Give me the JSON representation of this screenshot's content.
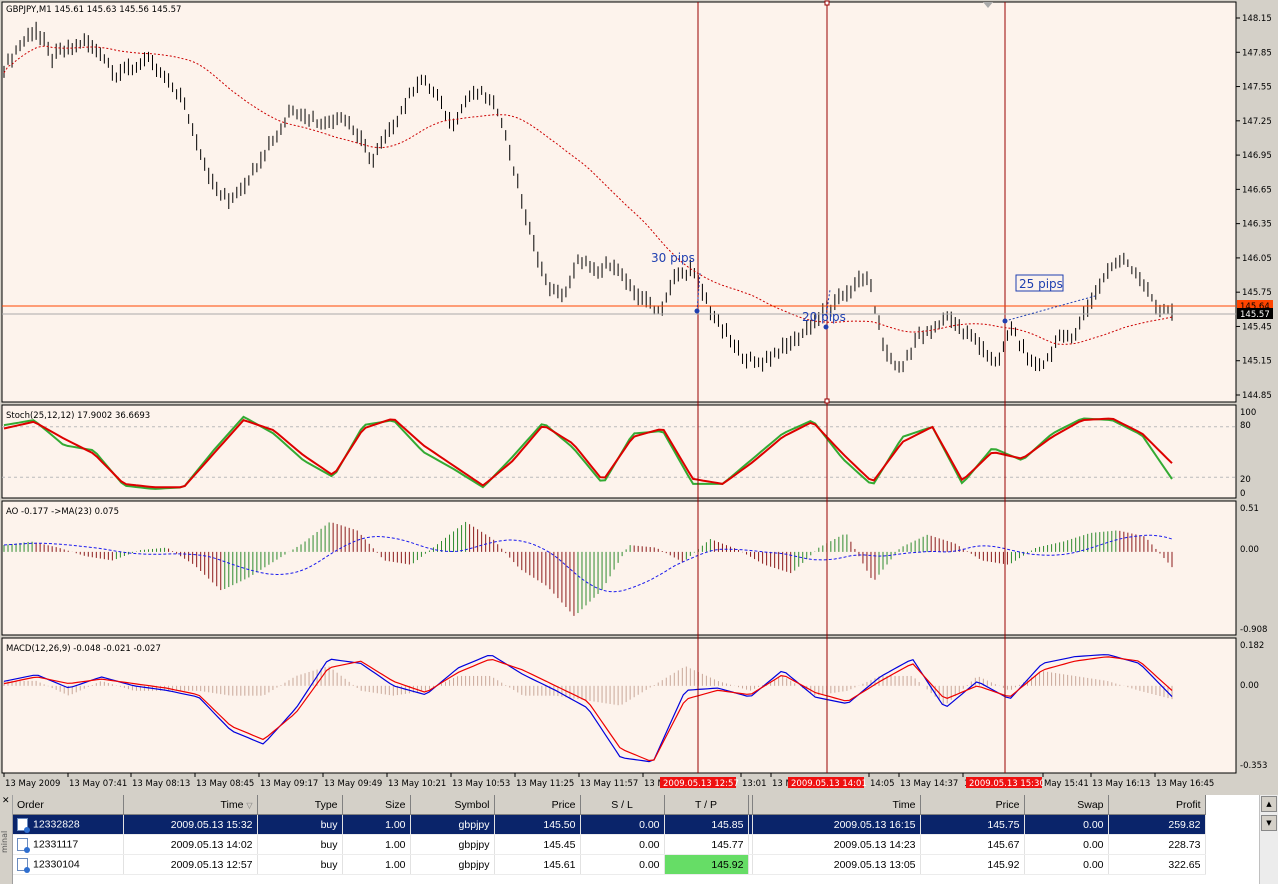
{
  "colors": {
    "chart_bg": "#fdf3ec",
    "bars": "#000000",
    "ma": "#cc0000",
    "stoch_main": "#33aa33",
    "stoch_signal": "#dd0000",
    "ao_up": "#2e8b2e",
    "ao_down": "#8b1a1a",
    "macd_main": "#0000dd",
    "macd_signal": "#ee0000",
    "macd_hist": "#c9a89a",
    "vline": "#990000",
    "annot": "#1f3fb0",
    "bid_line": "#ff4500",
    "sel_row": "#0a246a",
    "tp_hit": "#66dd66"
  },
  "main": {
    "header": "GBPJPY,M1  145.61 145.63 145.56 145.57",
    "price_ticks": [
      "148.15",
      "147.85",
      "147.55",
      "147.25",
      "146.95",
      "146.65",
      "146.35",
      "146.05",
      "145.75",
      "145.45",
      "145.15",
      "144.85"
    ],
    "bid_tag": "145.64",
    "last_tag": "145.57",
    "annotations": [
      "30 pips",
      "20 pips",
      "25 pips"
    ]
  },
  "stoch": {
    "header": "Stoch(25,12,12) 17.9002 36.6693",
    "ticks": [
      "100",
      "80",
      "20",
      "0"
    ]
  },
  "ao": {
    "header": "AO -0.177  ->MA(23) 0.075",
    "ticks": [
      "0.51",
      "0.00",
      "-0.908"
    ]
  },
  "macd": {
    "header": "MACD(12,26,9) -0.048 -0.021 -0.027",
    "ticks": [
      "0.182",
      "0.00",
      "-0.353"
    ]
  },
  "time_axis": {
    "labels": [
      "13 May 2009",
      "13 May 07:41",
      "13 May 08:13",
      "13 May 08:45",
      "13 May 09:17",
      "13 May 09:49",
      "13 May 10:21",
      "13 May 10:53",
      "13 May 11:25",
      "13 May 11:57",
      "13 M",
      "13:01",
      "13 M",
      "14:05",
      "13 May 14:37",
      "13 May 15:09",
      "May 15:41",
      "13 May 16:13",
      "13 May 16:45"
    ],
    "markers": [
      "2009.05.13 12:57",
      "2009.05.13 14:01",
      "2009.05.13 15:30"
    ]
  },
  "terminal": {
    "side_label": "minal",
    "columns": [
      "Order",
      "Time",
      "Type",
      "Size",
      "Symbol",
      "Price",
      "S / L",
      "T / P",
      "",
      "Time",
      "Price",
      "Swap",
      "Profit"
    ],
    "rows": [
      [
        "12332828",
        "2009.05.13 15:32",
        "buy",
        "1.00",
        "gbpjpy",
        "145.50",
        "0.00",
        "145.85",
        "2009.05.13 16:15",
        "145.75",
        "0.00",
        "259.82"
      ],
      [
        "12331117",
        "2009.05.13 14:02",
        "buy",
        "1.00",
        "gbpjpy",
        "145.45",
        "0.00",
        "145.77",
        "2009.05.13 14:23",
        "145.67",
        "0.00",
        "228.73"
      ],
      [
        "12330104",
        "2009.05.13 12:57",
        "buy",
        "1.00",
        "gbpjpy",
        "145.61",
        "0.00",
        "145.92",
        "2009.05.13 13:05",
        "145.92",
        "0.00",
        "322.65"
      ]
    ]
  },
  "chart_data": {
    "type": "line",
    "symbol": "GBPJPY,M1",
    "last_ohlc": [
      145.61,
      145.63,
      145.56,
      145.57
    ],
    "price_ylim": [
      144.85,
      148.15
    ],
    "price_path": [
      147.7,
      147.92,
      148.05,
      147.8,
      147.88,
      147.95,
      147.85,
      147.66,
      147.72,
      147.78,
      147.64,
      147.48,
      147.1,
      146.7,
      146.55,
      146.68,
      146.92,
      147.12,
      147.36,
      147.28,
      147.22,
      147.32,
      147.14,
      146.9,
      147.12,
      147.38,
      147.62,
      147.48,
      147.2,
      147.46,
      147.5,
      147.32,
      146.75,
      146.2,
      145.8,
      145.72,
      146.05,
      145.9,
      146.02,
      145.8,
      145.68,
      145.58,
      145.9,
      145.95,
      145.64,
      145.4,
      145.22,
      145.12,
      145.2,
      145.28,
      145.4,
      145.55,
      145.65,
      145.8,
      145.9,
      145.25,
      145.05,
      145.35,
      145.4,
      145.55,
      145.4,
      145.3,
      145.1,
      145.45,
      145.15,
      145.12,
      145.35,
      145.4,
      145.7,
      145.95,
      146.05,
      145.88,
      145.64,
      145.57
    ],
    "stoch_ylim": [
      0,
      100
    ],
    "stoch_main": [
      82,
      88,
      58,
      52,
      10,
      6,
      8,
      52,
      92,
      72,
      40,
      20,
      82,
      88,
      50,
      30,
      8,
      45,
      85,
      55,
      12,
      72,
      75,
      12,
      12,
      42,
      72,
      88,
      42,
      10,
      68,
      80,
      12,
      55,
      40,
      72,
      90,
      88,
      70,
      17.9
    ],
    "stoch_signal": [
      78,
      86,
      66,
      48,
      12,
      8,
      8,
      48,
      88,
      76,
      46,
      22,
      78,
      90,
      58,
      34,
      10,
      40,
      82,
      60,
      16,
      68,
      78,
      18,
      12,
      38,
      68,
      86,
      48,
      14,
      62,
      80,
      16,
      50,
      42,
      68,
      88,
      90,
      72,
      36.67
    ],
    "ao_ylim": [
      -0.908,
      0.51
    ],
    "ao_values": [
      0.08,
      0.12,
      0.05,
      -0.05,
      -0.1,
      0.02,
      0.05,
      -0.15,
      -0.45,
      -0.3,
      -0.1,
      0.1,
      0.35,
      0.25,
      -0.1,
      -0.15,
      0.1,
      0.35,
      0.15,
      -0.2,
      -0.4,
      -0.75,
      -0.45,
      0.08,
      0.05,
      -0.12,
      0.15,
      0.03,
      -0.15,
      -0.25,
      0.05,
      0.22,
      -0.35,
      0.05,
      0.2,
      0.1,
      -0.1,
      -0.15,
      0.05,
      0.12,
      0.22,
      0.25,
      0.18,
      -0.177
    ],
    "macd_ylim": [
      -0.353,
      0.182
    ],
    "macd_main": [
      0.02,
      0.05,
      -0.01,
      0.04,
      0.0,
      -0.02,
      -0.05,
      -0.2,
      -0.26,
      -0.1,
      0.12,
      0.1,
      0.0,
      -0.04,
      0.08,
      0.14,
      0.05,
      -0.02,
      -0.1,
      -0.32,
      -0.34,
      -0.02,
      -0.01,
      -0.05,
      0.07,
      -0.05,
      -0.08,
      0.04,
      0.12,
      -0.1,
      0.02,
      -0.06,
      0.1,
      0.13,
      0.14,
      0.1,
      -0.048
    ],
    "macd_signal": [
      0.01,
      0.04,
      0.01,
      0.03,
      0.01,
      -0.01,
      -0.04,
      -0.18,
      -0.24,
      -0.12,
      0.08,
      0.11,
      0.02,
      -0.03,
      0.06,
      0.12,
      0.07,
      0.0,
      -0.07,
      -0.28,
      -0.34,
      -0.06,
      -0.02,
      -0.04,
      0.05,
      -0.03,
      -0.07,
      0.02,
      0.1,
      -0.06,
      0.0,
      -0.05,
      0.07,
      0.11,
      0.13,
      0.11,
      -0.021
    ]
  }
}
